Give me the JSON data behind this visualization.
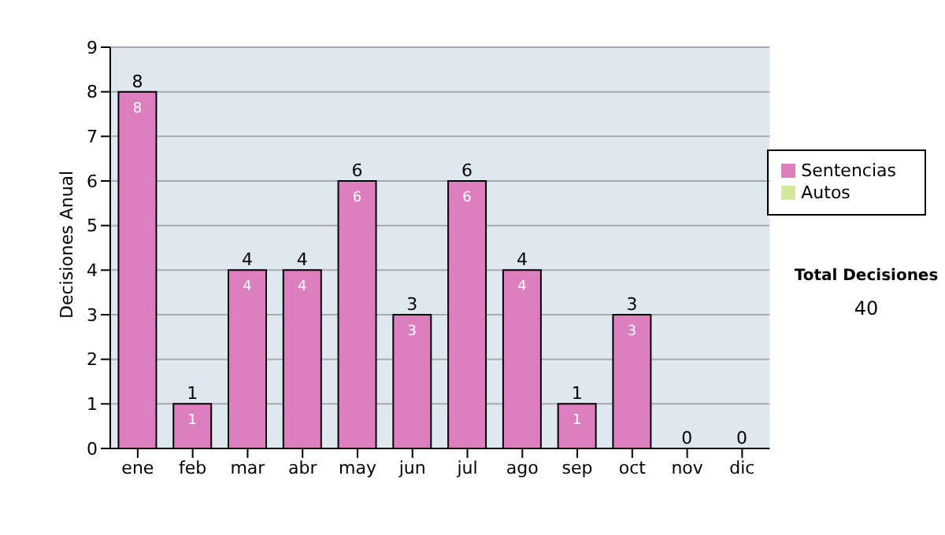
{
  "chart_data": {
    "type": "bar",
    "ylabel": "Decisiones Anual",
    "categories": [
      "ene",
      "feb",
      "mar",
      "abr",
      "may",
      "jun",
      "jul",
      "ago",
      "sep",
      "oct",
      "nov",
      "dic"
    ],
    "series": [
      {
        "name": "Sentencias",
        "color": "#dd7fbf",
        "values": [
          8,
          1,
          4,
          4,
          6,
          3,
          6,
          4,
          1,
          3,
          0,
          0
        ],
        "value_labels": [
          "8",
          "1",
          "4",
          "4",
          "6",
          "3",
          "6",
          "4",
          "1",
          "3",
          null,
          null
        ]
      },
      {
        "name": "Autos",
        "color": "#d6e8a0",
        "values": [
          0,
          0,
          0,
          0,
          0,
          0,
          0,
          0,
          0,
          0,
          0,
          0
        ]
      }
    ],
    "stacked": true,
    "totals": [
      "8",
      "1",
      "4",
      "4",
      "6",
      "3",
      "6",
      "4",
      "1",
      "3",
      "0",
      "0"
    ],
    "ylim": [
      0,
      9
    ],
    "yticks": [
      0,
      1,
      2,
      3,
      4,
      5,
      6,
      7,
      8,
      9
    ],
    "grid": "y",
    "legend": "right",
    "annotations": [
      "Total Decisiones",
      "40"
    ]
  }
}
